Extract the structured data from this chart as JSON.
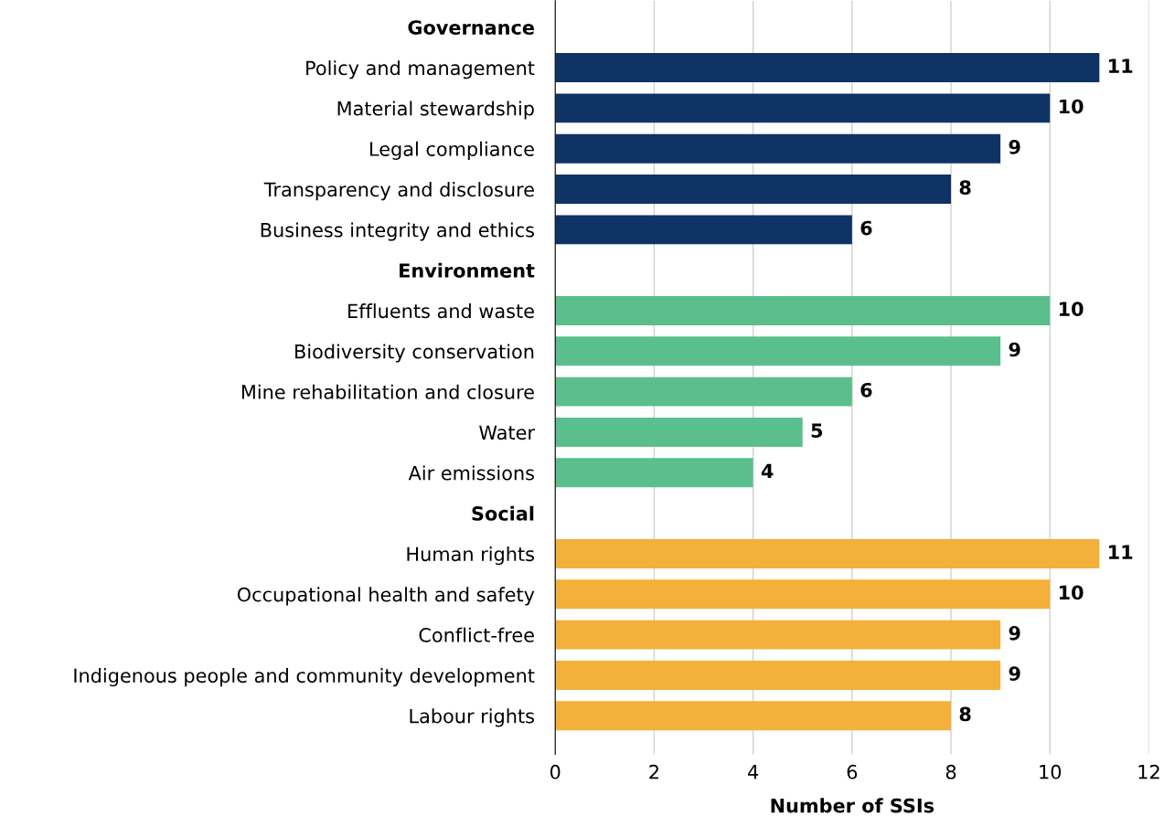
{
  "chart_data": {
    "type": "bar",
    "orientation": "horizontal",
    "xlabel": "Number of SSIs",
    "categories": [
      "Governance",
      "Policy and management",
      "Material stewardship",
      "Legal compliance",
      "Transparency and disclosure",
      "Business integrity and ethics",
      "Environment",
      "Effluents and waste",
      "Biodiversity conservation",
      "Mine rehabilitation and closure",
      "Water",
      "Air emissions",
      "Social",
      "Human rights",
      "Occupational health and safety",
      "Conflict-free",
      "Indigenous people and community development",
      "Labour rights"
    ],
    "values": [
      null,
      11,
      10,
      9,
      8,
      6,
      null,
      10,
      9,
      6,
      5,
      4,
      null,
      11,
      10,
      9,
      9,
      8
    ],
    "colors": [
      null,
      "#103366",
      "#103366",
      "#103366",
      "#103366",
      "#103366",
      null,
      "#5abf8c",
      "#5abf8c",
      "#5abf8c",
      "#5abf8c",
      "#5abf8c",
      null,
      "#f3b03a",
      "#f3b03a",
      "#f3b03a",
      "#f3b03a",
      "#f3b03a"
    ],
    "xlim": [
      0,
      12
    ],
    "xticks": [
      0,
      2,
      4,
      6,
      8,
      10,
      12
    ],
    "grid": "x",
    "data_labels": true
  }
}
